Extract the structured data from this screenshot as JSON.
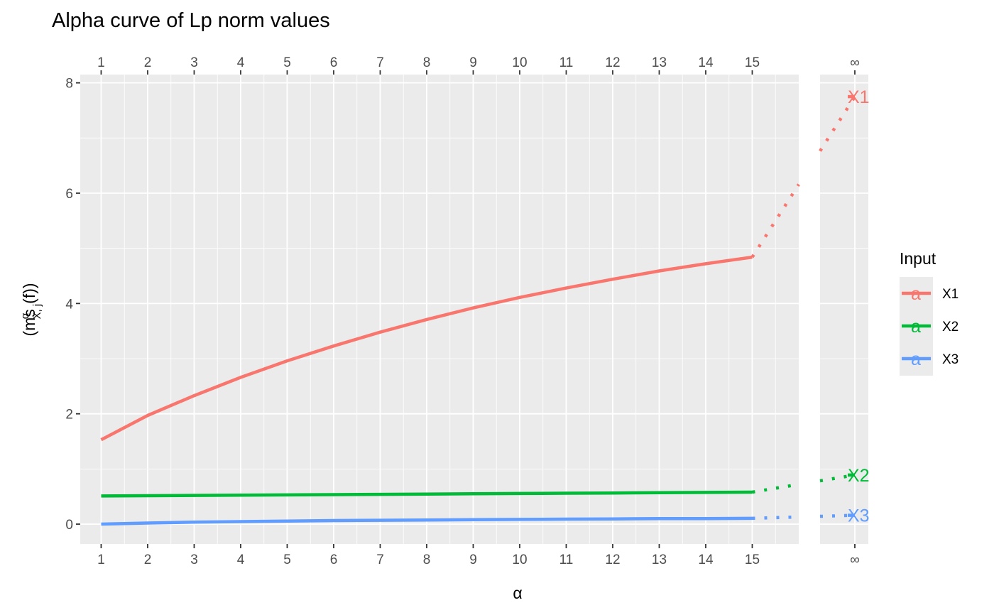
{
  "chart_data": {
    "type": "line",
    "title": "Alpha curve of Lp norm values",
    "xlabel": "α",
    "ylabel_main": "(ms",
    "ylabel_sup": "α",
    "ylabel_sub": "X, j",
    "ylabel_tail": "(f))",
    "x_ticks": [
      1,
      2,
      3,
      4,
      5,
      6,
      7,
      8,
      9,
      10,
      11,
      12,
      13,
      14,
      15
    ],
    "x_tick_labels": [
      "1",
      "2",
      "3",
      "4",
      "5",
      "6",
      "7",
      "8",
      "9",
      "10",
      "11",
      "12",
      "13",
      "14",
      "15"
    ],
    "infinity_label": "∞",
    "xlim": [
      0.55,
      16.0
    ],
    "ylim": [
      -0.36,
      8.15
    ],
    "y_ticks": [
      0,
      2,
      4,
      6,
      8
    ],
    "y_tick_labels": [
      "0",
      "2",
      "4",
      "6",
      "8"
    ],
    "grid": true,
    "legend": {
      "title": "Input",
      "position": "right",
      "key_glyph": "a"
    },
    "series": [
      {
        "name": "X1",
        "color": "#F8766D",
        "x": [
          1,
          2,
          3,
          4,
          5,
          6,
          7,
          8,
          9,
          10,
          11,
          12,
          13,
          14,
          15
        ],
        "values": [
          1.53,
          1.97,
          2.33,
          2.66,
          2.96,
          3.23,
          3.48,
          3.71,
          3.92,
          4.11,
          4.28,
          4.44,
          4.59,
          4.72,
          4.84
        ],
        "infinity_value": 7.75
      },
      {
        "name": "X2",
        "color": "#00BA38",
        "x": [
          1,
          2,
          3,
          4,
          5,
          6,
          7,
          8,
          9,
          10,
          11,
          12,
          13,
          14,
          15
        ],
        "values": [
          0.51,
          0.515,
          0.52,
          0.525,
          0.53,
          0.535,
          0.54,
          0.545,
          0.55,
          0.555,
          0.56,
          0.565,
          0.57,
          0.575,
          0.58
        ],
        "infinity_value": 0.89
      },
      {
        "name": "X3",
        "color": "#619CFF",
        "x": [
          1,
          2,
          3,
          4,
          5,
          6,
          7,
          8,
          9,
          10,
          11,
          12,
          13,
          14,
          15
        ],
        "values": [
          0.0,
          0.02,
          0.035,
          0.045,
          0.055,
          0.065,
          0.07,
          0.075,
          0.08,
          0.085,
          0.09,
          0.095,
          0.1,
          0.1,
          0.105
        ],
        "infinity_value": 0.16
      }
    ]
  }
}
